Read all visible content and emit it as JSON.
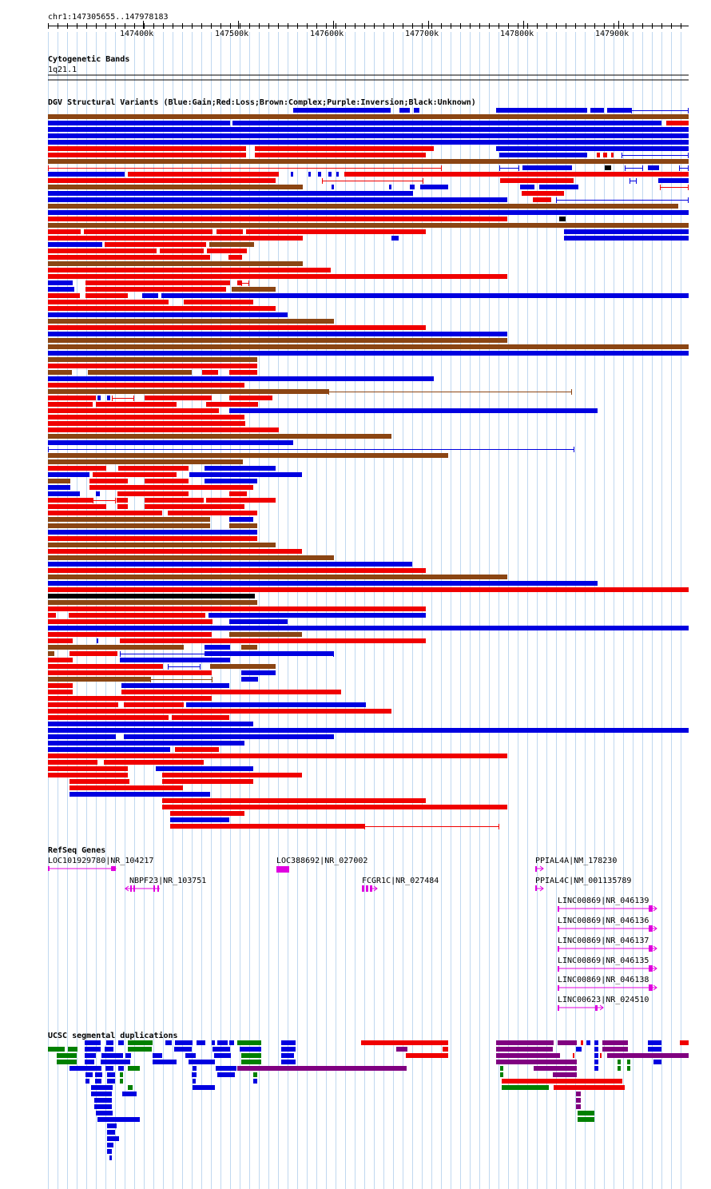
{
  "ruler": {
    "coordinates": "chr1:147305655..147978183",
    "ticks": [
      "147400k",
      "147500k",
      "147600k",
      "147700k",
      "147800k",
      "147900k"
    ]
  },
  "tracks": {
    "cytobands": {
      "title": "Cytogenetic Bands",
      "band_label": "1q21.1"
    },
    "dgv": {
      "title": "DGV Structural Variants (Blue:Gain;Red:Loss;Brown:Complex;Purple:Inversion;Black:Unknown)"
    },
    "refseq": {
      "title": "RefSeq Genes"
    },
    "segdups": {
      "title": "UCSC segmental duplications"
    }
  },
  "genes": [
    "LOC101929780|NR_104217",
    "NBPF23|NR_103751",
    "LOC388692|NR_027002",
    "FCGR1C|NR_027484",
    "PPIAL4A|NM_178230",
    "PPIAL4C|NM_001135789",
    "LINC00869|NR_046139",
    "LINC00869|NR_046136",
    "LINC00869|NR_046137",
    "LINC00869|NR_046135",
    "LINC00869|NR_046138",
    "LINC00623|NR_024510"
  ],
  "colors": {
    "gain": "#0000e0",
    "loss": "#f00000",
    "complex": "#8b4513",
    "inversion": "#800080",
    "unknown": "#000000",
    "gene": "#e000e0",
    "segdup_green": "#008000",
    "grid": "#c0d8f0"
  }
}
